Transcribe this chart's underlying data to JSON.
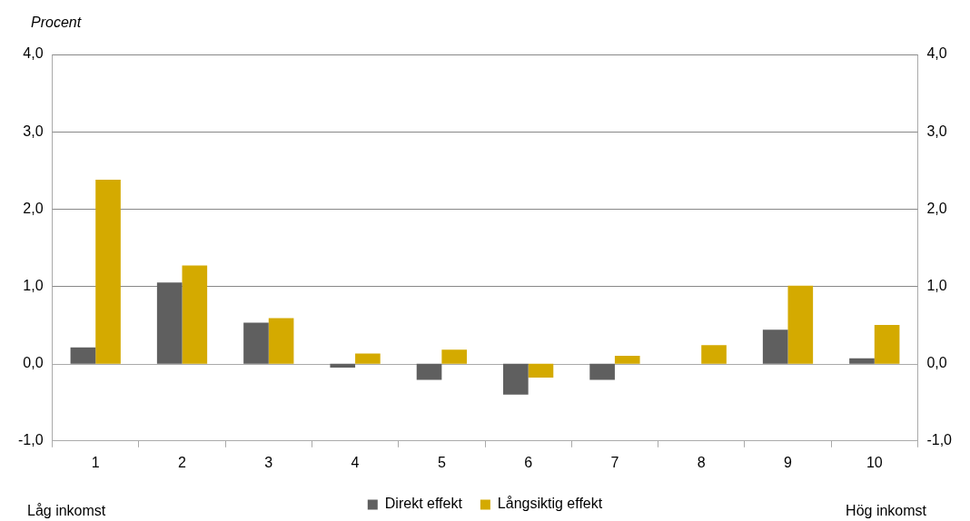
{
  "chart_data": {
    "type": "bar",
    "ylabel": "Procent",
    "categories": [
      "1",
      "2",
      "3",
      "4",
      "5",
      "6",
      "7",
      "8",
      "9",
      "10"
    ],
    "series": [
      {
        "name": "Direkt effekt",
        "color": "#5f5f5f",
        "values": [
          0.21,
          1.05,
          0.53,
          -0.05,
          -0.21,
          -0.4,
          -0.21,
          null,
          0.44,
          0.07
        ]
      },
      {
        "name": "Långsiktig effekt",
        "color": "#d4aa00",
        "values": [
          2.38,
          1.27,
          0.59,
          0.13,
          0.18,
          -0.18,
          0.1,
          0.24,
          1.01,
          0.5
        ]
      }
    ],
    "ylim": [
      -1,
      4
    ],
    "yticks": [
      {
        "value": -1,
        "label": "-1,0"
      },
      {
        "value": 0,
        "label": "0,0"
      },
      {
        "value": 1,
        "label": "1,0"
      },
      {
        "value": 2,
        "label": "2,0"
      },
      {
        "value": 3,
        "label": "3,0"
      },
      {
        "value": 4,
        "label": "4,0"
      }
    ],
    "y2lim": [
      -1,
      4
    ],
    "y2ticks": [
      {
        "value": -1,
        "label": "-1,0"
      },
      {
        "value": 0,
        "label": "0,0"
      },
      {
        "value": 1,
        "label": "1,0"
      },
      {
        "value": 2,
        "label": "2,0"
      },
      {
        "value": 3,
        "label": "3,0"
      },
      {
        "value": 4,
        "label": "4,0"
      }
    ],
    "grid": "y",
    "legend": "bottom",
    "annotations": [
      "Låg inkomst",
      "Hög inkomst"
    ]
  }
}
